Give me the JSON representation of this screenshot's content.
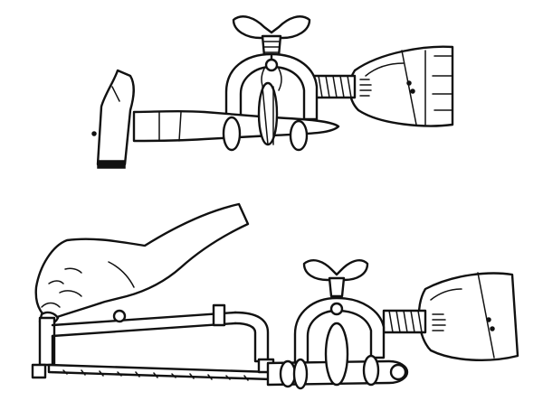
{
  "illustration": {
    "panels": [
      {
        "subject": "hammer-handle-held-in-vise-clamp"
      },
      {
        "subject": "hand-sawing-handle-held-in-vise-clamp"
      }
    ],
    "colors": {
      "ink": "#111111",
      "paper": "#ffffff"
    }
  }
}
